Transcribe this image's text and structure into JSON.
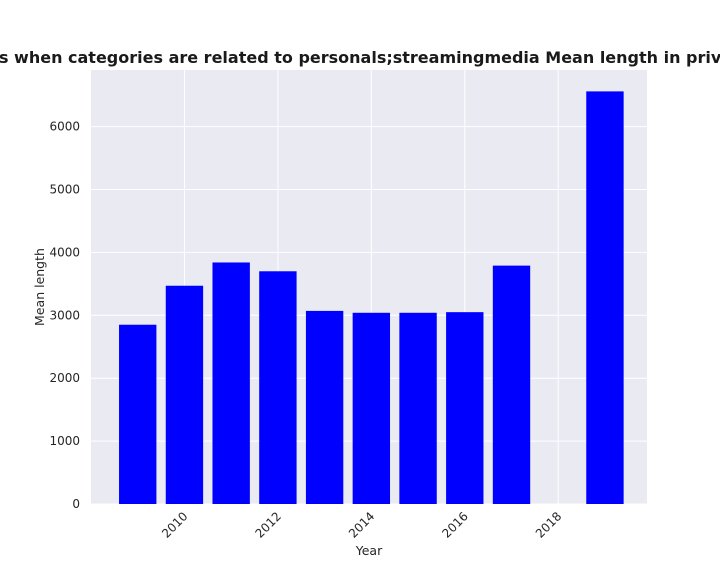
{
  "chart_data": {
    "type": "bar",
    "title": "Number of policies when categories are related to personals;streamingmedia Mean length in privacy policies by Year",
    "xlabel": "Year",
    "ylabel": "Mean length",
    "x": [
      2009,
      2010,
      2011,
      2012,
      2013,
      2014,
      2015,
      2016,
      2017,
      2019
    ],
    "values": [
      2850,
      3470,
      3840,
      3700,
      3070,
      3040,
      3040,
      3050,
      3790,
      6560
    ],
    "xlim": [
      2008.0,
      2019.9
    ],
    "ylim": [
      0,
      6900
    ],
    "xticks": [
      2010,
      2012,
      2014,
      2016,
      2018
    ],
    "yticks": [
      0,
      1000,
      2000,
      3000,
      4000,
      5000,
      6000
    ],
    "bar_color": "#0000ff",
    "plot_background": "#eaeaf2",
    "grid": true
  }
}
